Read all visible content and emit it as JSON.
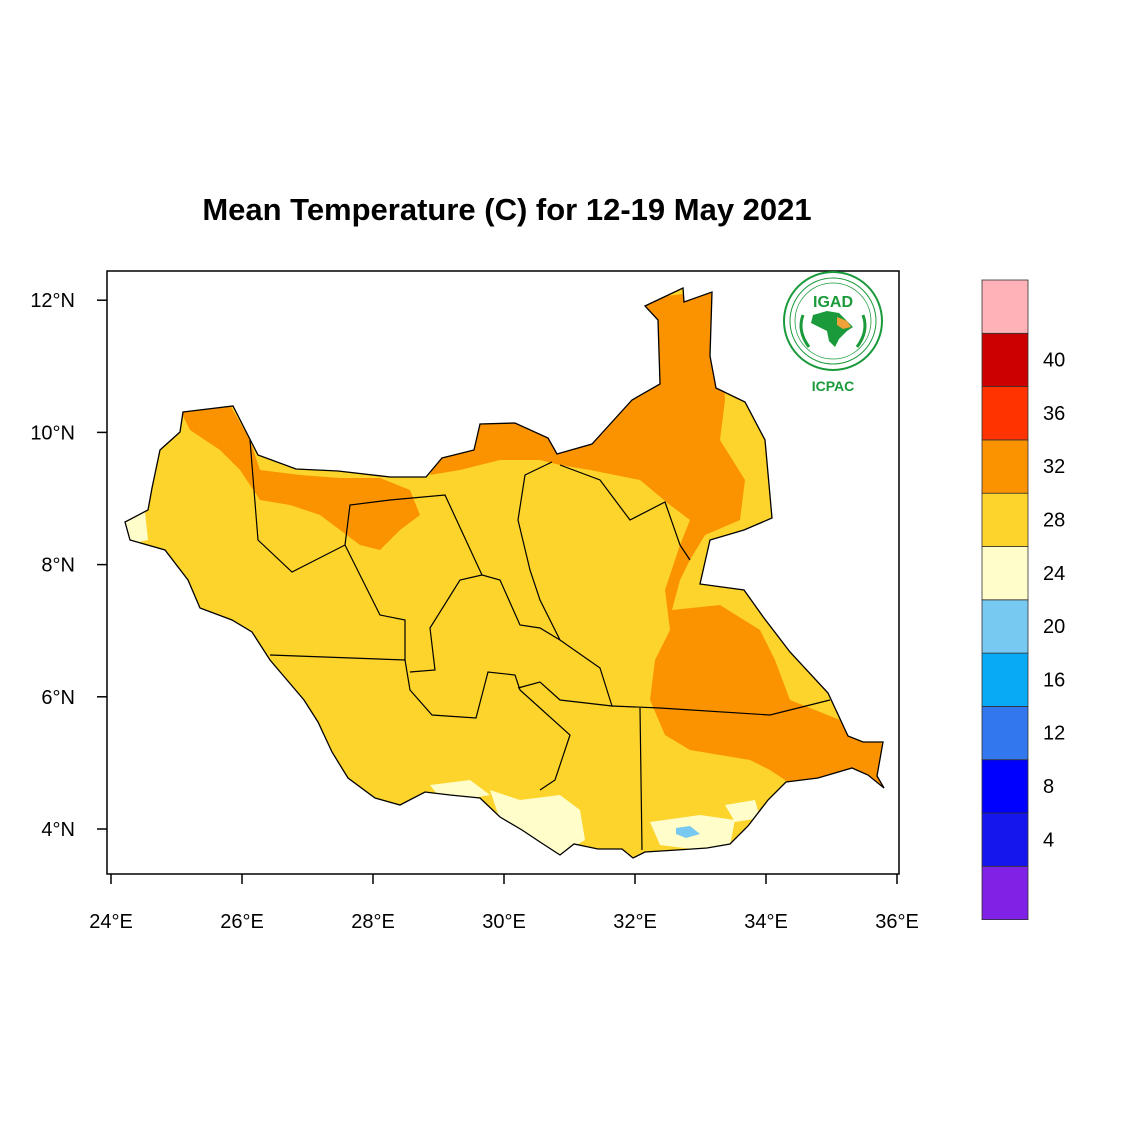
{
  "map": {
    "title": "Mean Temperature (C) for 12-19 May 2021",
    "region": "South Sudan",
    "extent": {
      "lon": [
        24,
        36
      ],
      "lat": [
        3.5,
        12.3
      ]
    },
    "x_ticks": [
      "24°E",
      "26°E",
      "28°E",
      "30°E",
      "32°E",
      "34°E",
      "36°E"
    ],
    "y_ticks": [
      "4°N",
      "6°N",
      "8°N",
      "10°N",
      "12°N"
    ],
    "dominant_class": "24-28",
    "warm_areas_class": "28-32",
    "cool_areas_class": "20-24"
  },
  "colorbar": {
    "labels": [
      "4",
      "8",
      "12",
      "16",
      "20",
      "24",
      "28",
      "32",
      "36",
      "40"
    ],
    "colors": [
      "#8022e6",
      "#1515ee",
      "#0000ff",
      "#3377ee",
      "#08a9f5",
      "#77c9f2",
      "#fffdca",
      "#fdd42c",
      "#fb9300",
      "#ff3300",
      "#cc0000",
      "#ffb2b8"
    ]
  },
  "logo": {
    "top_text": "IGAD",
    "bottom_text": "ICPAC",
    "colors": {
      "green": "#1a9a3a",
      "orange": "#f0a23a"
    }
  }
}
